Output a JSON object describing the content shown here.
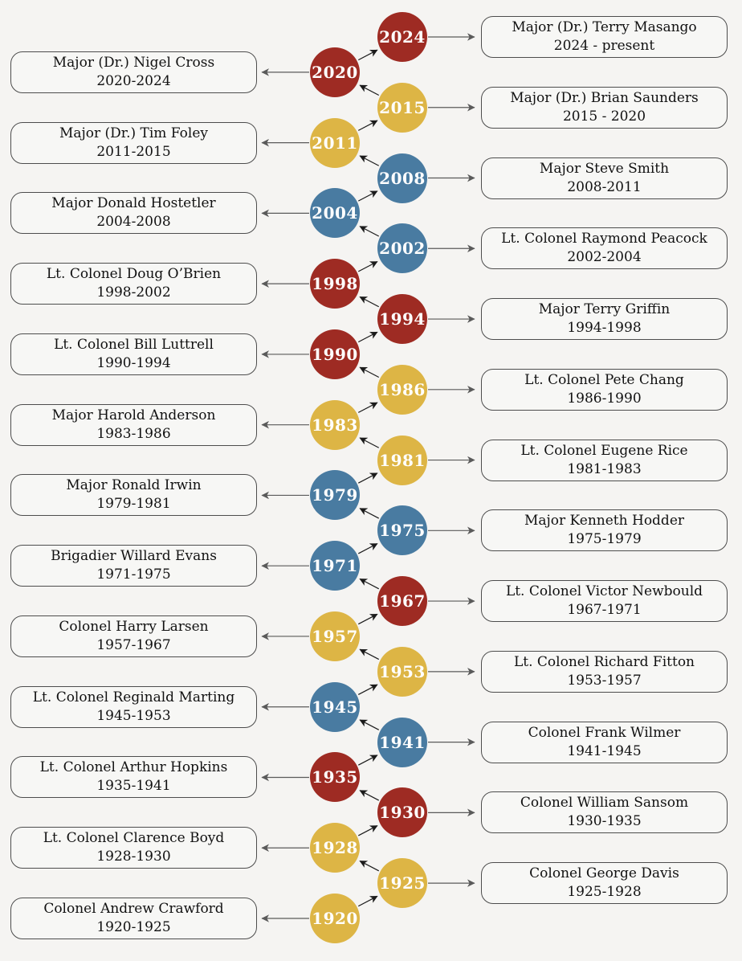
{
  "diagram": {
    "background_color": "#f5f4f2",
    "box_fill_color": "#f7f7f5",
    "box_border_color": "#4d4d4d",
    "chain_arrow_color": "#1a1a1a",
    "box_arrow_color": "#5a5a5a",
    "year_text_color": "#ffffff",
    "node_colors": {
      "red": "#9e2b23",
      "gold": "#ddb545",
      "blue": "#497ba1"
    }
  },
  "timeline": [
    {
      "year": "2024",
      "color": "red",
      "side": "right",
      "name": "Major (Dr.) Terry Masango",
      "tenure": "2024 - present"
    },
    {
      "year": "2020",
      "color": "red",
      "side": "left",
      "name": "Major (Dr.) Nigel Cross",
      "tenure": "2020-2024"
    },
    {
      "year": "2015",
      "color": "gold",
      "side": "right",
      "name": "Major (Dr.) Brian Saunders",
      "tenure": "2015 - 2020"
    },
    {
      "year": "2011",
      "color": "gold",
      "side": "left",
      "name": "Major (Dr.) Tim Foley",
      "tenure": "2011-2015"
    },
    {
      "year": "2008",
      "color": "blue",
      "side": "right",
      "name": "Major Steve Smith",
      "tenure": "2008-2011"
    },
    {
      "year": "2004",
      "color": "blue",
      "side": "left",
      "name": "Major Donald Hostetler",
      "tenure": "2004-2008"
    },
    {
      "year": "2002",
      "color": "blue",
      "side": "right",
      "name": "Lt. Colonel Raymond Peacock",
      "tenure": "2002-2004"
    },
    {
      "year": "1998",
      "color": "red",
      "side": "left",
      "name": "Lt. Colonel Doug O’Brien",
      "tenure": "1998-2002"
    },
    {
      "year": "1994",
      "color": "red",
      "side": "right",
      "name": "Major Terry Griffin",
      "tenure": "1994-1998"
    },
    {
      "year": "1990",
      "color": "red",
      "side": "left",
      "name": "Lt. Colonel Bill Luttrell",
      "tenure": "1990-1994"
    },
    {
      "year": "1986",
      "color": "gold",
      "side": "right",
      "name": "Lt. Colonel Pete Chang",
      "tenure": "1986-1990"
    },
    {
      "year": "1983",
      "color": "gold",
      "side": "left",
      "name": "Major Harold Anderson",
      "tenure": "1983-1986"
    },
    {
      "year": "1981",
      "color": "gold",
      "side": "right",
      "name": "Lt. Colonel Eugene Rice",
      "tenure": "1981-1983"
    },
    {
      "year": "1979",
      "color": "blue",
      "side": "left",
      "name": "Major Ronald Irwin",
      "tenure": "1979-1981"
    },
    {
      "year": "1975",
      "color": "blue",
      "side": "right",
      "name": "Major Kenneth Hodder",
      "tenure": "1975-1979"
    },
    {
      "year": "1971",
      "color": "blue",
      "side": "left",
      "name": "Brigadier Willard Evans",
      "tenure": "1971-1975"
    },
    {
      "year": "1967",
      "color": "red",
      "side": "right",
      "name": "Lt. Colonel Victor Newbould",
      "tenure": "1967-1971"
    },
    {
      "year": "1957",
      "color": "gold",
      "side": "left",
      "name": "Colonel Harry Larsen",
      "tenure": "1957-1967"
    },
    {
      "year": "1953",
      "color": "gold",
      "side": "right",
      "name": "Lt. Colonel Richard Fitton",
      "tenure": "1953-1957"
    },
    {
      "year": "1945",
      "color": "blue",
      "side": "left",
      "name": "Lt. Colonel Reginald Marting",
      "tenure": "1945-1953"
    },
    {
      "year": "1941",
      "color": "blue",
      "side": "right",
      "name": "Colonel Frank Wilmer",
      "tenure": "1941-1945"
    },
    {
      "year": "1935",
      "color": "red",
      "side": "left",
      "name": "Lt. Colonel Arthur Hopkins",
      "tenure": "1935-1941"
    },
    {
      "year": "1930",
      "color": "red",
      "side": "right",
      "name": "Colonel William Sansom",
      "tenure": "1930-1935"
    },
    {
      "year": "1928",
      "color": "gold",
      "side": "left",
      "name": "Lt. Colonel Clarence Boyd",
      "tenure": "1928-1930"
    },
    {
      "year": "1925",
      "color": "gold",
      "side": "right",
      "name": "Colonel George Davis",
      "tenure": "1925-1928"
    },
    {
      "year": "1920",
      "color": "gold",
      "side": "left",
      "name": "Colonel Andrew Crawford",
      "tenure": "1920-1925"
    }
  ]
}
